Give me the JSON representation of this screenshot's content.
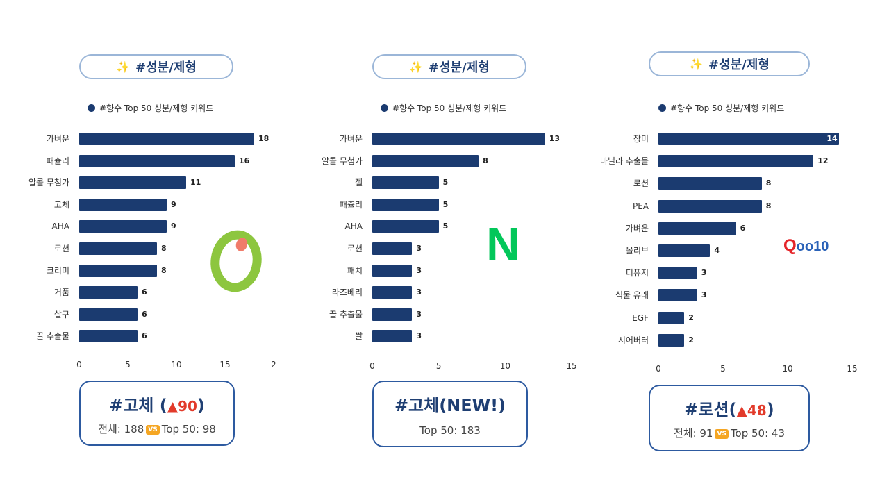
{
  "panels": [
    {
      "pill_label": "#성분/제형",
      "legend_label": "#향수 Top 50 성분/제형 키워드",
      "card": {
        "headline": "#고체 (",
        "change": "▲90",
        "headline_end": ")",
        "total_label": "전체: 188",
        "vs": "VS",
        "top_label": "Top 50: 98"
      },
      "logo": {
        "name": "olive-young-logo",
        "primary": "#8dc63f",
        "accent": "#f07b6a"
      }
    },
    {
      "pill_label": "#성분/제형",
      "legend_label": "#향수 Top 50 성분/제형 키워드",
      "card": {
        "headline": "#고체(NEW!)",
        "change": "",
        "headline_end": "",
        "total_label": "",
        "vs": "",
        "top_label": "Top 50: 183"
      },
      "logo": {
        "name": "naver-logo",
        "text": "N",
        "primary": "#03c75a"
      }
    },
    {
      "pill_label": "#성분/제형",
      "legend_label": "#향수 Top 50 성분/제형 키워드",
      "card": {
        "headline": "#로션(",
        "change": "▲48",
        "headline_end": ")",
        "total_label": "전체: 91",
        "vs": "VS",
        "top_label": "Top 50: 43"
      },
      "logo": {
        "name": "qoo10-logo",
        "text_q": "Q",
        "text_rest": "oo10",
        "primary": "#e5252a",
        "secondary": "#2a62b8"
      }
    }
  ],
  "chart_data": [
    {
      "type": "bar",
      "orientation": "horizontal",
      "categories": [
        "가벼운",
        "패츌리",
        "알콜 무첨가",
        "고체",
        "AHA",
        "로션",
        "크리미",
        "거품",
        "살구",
        "꿀 추출물"
      ],
      "values": [
        18,
        16,
        11,
        9,
        9,
        8,
        8,
        6,
        6,
        6
      ],
      "tick_labels": [
        "0",
        "5",
        "10",
        "15",
        "2"
      ],
      "xlim": [
        0,
        20
      ],
      "legend": "#향수 Top 50 성분/제형 키워드",
      "bar_color": "#1b3b70"
    },
    {
      "type": "bar",
      "orientation": "horizontal",
      "categories": [
        "가벼운",
        "알콜 무첨가",
        "젤",
        "패츌리",
        "AHA",
        "로션",
        "패치",
        "라즈베리",
        "꿀 추출물",
        "쌀"
      ],
      "values": [
        13,
        8,
        5,
        5,
        5,
        3,
        3,
        3,
        3,
        3
      ],
      "tick_labels": [
        "0",
        "5",
        "10",
        "15"
      ],
      "xlim": [
        0,
        15
      ],
      "legend": "#향수 Top 50 성분/제형 키워드",
      "bar_color": "#1b3b70"
    },
    {
      "type": "bar",
      "orientation": "horizontal",
      "categories": [
        "장미",
        "바닐라 추출물",
        "로션",
        "PEA",
        "가벼운",
        "올리브",
        "디퓨저",
        "식물 유래",
        "EGF",
        "시어버터"
      ],
      "values": [
        14,
        12,
        8,
        8,
        6,
        4,
        3,
        3,
        2,
        2
      ],
      "tick_labels": [
        "0",
        "5",
        "10",
        "15"
      ],
      "xlim": [
        0,
        15
      ],
      "legend": "#향수 Top 50 성분/제형 키워드",
      "bar_color": "#1b3b70"
    }
  ]
}
